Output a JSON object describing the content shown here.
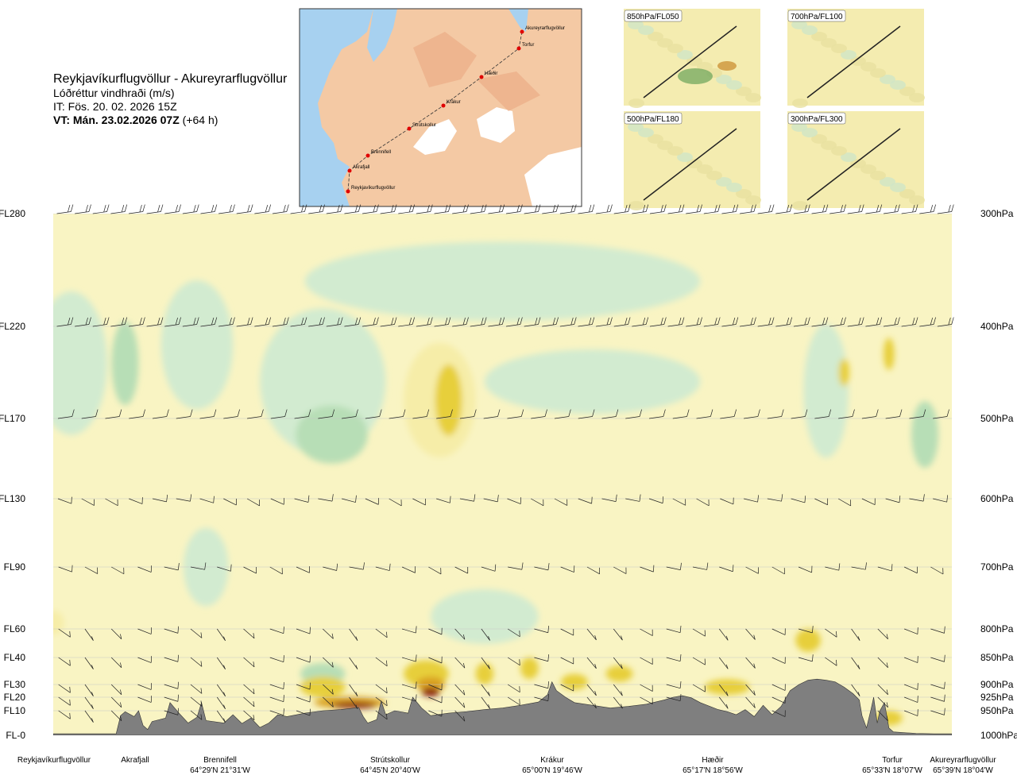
{
  "header": {
    "route": "Reykjavíkurflugvöllur - Akureyrarflugvöllur",
    "variable": "Lóðréttur vindhraði (m/s)",
    "issue_time": "IT: Fös. 20. 02. 2026 15Z",
    "valid_time": "VT: Mán. 23.02.2026 07Z",
    "lead_time": "(+64 h)"
  },
  "route_map": {
    "waypoints": [
      "Akureyrarflugvöllur",
      "Torfur",
      "Hæðir",
      "Krákur",
      "Strútskollur",
      "Brennifell",
      "Akrafjall",
      "Reykjavíkurflugvöllur"
    ]
  },
  "insets": [
    {
      "label": "850hPa/FL050"
    },
    {
      "label": "700hPa/FL100"
    },
    {
      "label": "500hPa/FL180"
    },
    {
      "label": "300hPa/FL300"
    }
  ],
  "colors": {
    "fill_down_strong": "#9bcf9b",
    "fill_down": "#b7deb6",
    "fill_down_weak": "#d2ebd0",
    "fill_neutral": "#fdfde4",
    "fill_up_weak": "#f6eda8",
    "fill_up": "#e7cf3a",
    "fill_up_strong": "#d9a122",
    "fill_up_max": "#8b2310",
    "terrain": "#7f7f7f"
  },
  "chart_data": {
    "type": "heatmap",
    "title": "Reykjavíkurflugvöllur - Akureyrarflugvöllur",
    "variable": "Lóðréttur vindhraði (m/s)",
    "y_levels": [
      {
        "fl": "FL280",
        "hpa": "300hPa",
        "p": 300
      },
      {
        "fl": "FL220",
        "hpa": "400hPa",
        "p": 400
      },
      {
        "fl": "FL170",
        "hpa": "500hPa",
        "p": 500
      },
      {
        "fl": "FL130",
        "hpa": "600hPa",
        "p": 600
      },
      {
        "fl": "FL90",
        "hpa": "700hPa",
        "p": 700
      },
      {
        "fl": "FL60",
        "hpa": "800hPa",
        "p": 800
      },
      {
        "fl": "FL40",
        "hpa": "850hPa",
        "p": 850
      },
      {
        "fl": "FL30",
        "hpa": "900hPa",
        "p": 900
      },
      {
        "fl": "FL20",
        "hpa": "925hPa",
        "p": 925
      },
      {
        "fl": "FL10",
        "hpa": "950hPa",
        "p": 950
      },
      {
        "fl": "FL-0",
        "hpa": "1000hPa",
        "p": 1000
      }
    ],
    "ylim": [
      1000,
      300
    ],
    "xlim": [
      0,
      100
    ],
    "waypoints": [
      {
        "name": "Reykjavíkurflugvöllur",
        "coord": "",
        "x": 0
      },
      {
        "name": "Akrafjall",
        "coord": "",
        "x": 9
      },
      {
        "name": "Brennifell",
        "coord": "64°29'N 21°31'W",
        "x": 18
      },
      {
        "name": "Strútskollur",
        "coord": "64°45'N 20°40'W",
        "x": 37.5
      },
      {
        "name": "Krákur",
        "coord": "65°00'N 19°46'W",
        "x": 56.5
      },
      {
        "name": "Hæðir",
        "coord": "65°17'N 18°56'W",
        "x": 76
      },
      {
        "name": "Torfur",
        "coord": "65°33'N 18°07'W",
        "x": 94
      },
      {
        "name": "Akureyrarflugvöllur",
        "coord": "65°39'N 18°04'W",
        "x": 100
      }
    ],
    "terrain_profile_hpa": [
      [
        0,
        997
      ],
      [
        7,
        997
      ],
      [
        7.5,
        960
      ],
      [
        8,
        952
      ],
      [
        9,
        962
      ],
      [
        9.5,
        950
      ],
      [
        10,
        980
      ],
      [
        10.5,
        988
      ],
      [
        11,
        972
      ],
      [
        12.5,
        965
      ],
      [
        13,
        935
      ],
      [
        14,
        955
      ],
      [
        15,
        975
      ],
      [
        16,
        963
      ],
      [
        16.5,
        935
      ],
      [
        17,
        970
      ],
      [
        19,
        975
      ],
      [
        20,
        958
      ],
      [
        21,
        976
      ],
      [
        22,
        965
      ],
      [
        23,
        984
      ],
      [
        24,
        975
      ],
      [
        25,
        958
      ],
      [
        26,
        962
      ],
      [
        28,
        955
      ],
      [
        30,
        950
      ],
      [
        32,
        948
      ],
      [
        33,
        946
      ],
      [
        34,
        944
      ],
      [
        34.5,
        962
      ],
      [
        35,
        975
      ],
      [
        36,
        968
      ],
      [
        36.5,
        932
      ],
      [
        37,
        958
      ],
      [
        38,
        950
      ],
      [
        39.5,
        955
      ],
      [
        40,
        925
      ],
      [
        41,
        945
      ],
      [
        42,
        960
      ],
      [
        44,
        955
      ],
      [
        46,
        952
      ],
      [
        48,
        948
      ],
      [
        50,
        945
      ],
      [
        52,
        940
      ],
      [
        54,
        934
      ],
      [
        55,
        920
      ],
      [
        55.5,
        895
      ],
      [
        56,
        912
      ],
      [
        57,
        925
      ],
      [
        58,
        935
      ],
      [
        60,
        940
      ],
      [
        62,
        945
      ],
      [
        64,
        942
      ],
      [
        66,
        938
      ],
      [
        68,
        930
      ],
      [
        69,
        925
      ],
      [
        70,
        922
      ],
      [
        71,
        926
      ],
      [
        72,
        935
      ],
      [
        74,
        948
      ],
      [
        75,
        952
      ],
      [
        76,
        958
      ],
      [
        77,
        948
      ],
      [
        78,
        962
      ],
      [
        79,
        940
      ],
      [
        80,
        958
      ],
      [
        81,
        942
      ],
      [
        82,
        912
      ],
      [
        83,
        900
      ],
      [
        84,
        892
      ],
      [
        85,
        890
      ],
      [
        86,
        892
      ],
      [
        87,
        895
      ],
      [
        88,
        905
      ],
      [
        89,
        918
      ],
      [
        89.7,
        930
      ],
      [
        90,
        960
      ],
      [
        90.5,
        985
      ],
      [
        91,
        948
      ],
      [
        91.3,
        925
      ],
      [
        91.7,
        975
      ],
      [
        92,
        950
      ],
      [
        92.5,
        935
      ],
      [
        93,
        985
      ],
      [
        93.5,
        993
      ],
      [
        95,
        995
      ],
      [
        96,
        996
      ],
      [
        98,
        997
      ],
      [
        100,
        997
      ]
    ],
    "vertical_velocity_regions": [
      {
        "class": "down_weak",
        "x": 2,
        "p": 440,
        "rx": 4,
        "rp": 150
      },
      {
        "class": "down",
        "x": 8,
        "p": 440,
        "rx": 1.5,
        "rp": 90
      },
      {
        "class": "down_weak",
        "x": 16,
        "p": 420,
        "rx": 4,
        "rp": 130
      },
      {
        "class": "down_weak",
        "x": 17,
        "p": 700,
        "rx": 2.5,
        "rp": 120
      },
      {
        "class": "down_weak",
        "x": 30,
        "p": 460,
        "rx": 7,
        "rp": 160
      },
      {
        "class": "down",
        "x": 31,
        "p": 520,
        "rx": 4,
        "rp": 70
      },
      {
        "class": "down_weak",
        "x": 50,
        "p": 360,
        "rx": 22,
        "rp": 70
      },
      {
        "class": "down_weak",
        "x": 60,
        "p": 460,
        "rx": 12,
        "rp": 70
      },
      {
        "class": "down_weak",
        "x": 86,
        "p": 470,
        "rx": 2.5,
        "rp": 150
      },
      {
        "class": "down",
        "x": 97,
        "p": 520,
        "rx": 1.5,
        "rp": 80
      },
      {
        "class": "down_weak",
        "x": 48,
        "p": 780,
        "rx": 6,
        "rp": 90
      },
      {
        "class": "down",
        "x": 30,
        "p": 880,
        "rx": 2.5,
        "rp": 40
      },
      {
        "class": "up_weak",
        "x": 43,
        "p": 480,
        "rx": 4,
        "rp": 130
      },
      {
        "class": "up",
        "x": 44,
        "p": 480,
        "rx": 1.5,
        "rp": 80
      },
      {
        "class": "up",
        "x": 88,
        "p": 450,
        "rx": 0.6,
        "rp": 30
      },
      {
        "class": "up",
        "x": 93,
        "p": 430,
        "rx": 0.6,
        "rp": 35
      },
      {
        "class": "up_weak",
        "x": 0,
        "p": 790,
        "rx": 1.2,
        "rp": 40
      },
      {
        "class": "up",
        "x": 30,
        "p": 905,
        "rx": 2.5,
        "rp": 40
      },
      {
        "class": "up_strong",
        "x": 33,
        "p": 935,
        "rx": 4,
        "rp": 22
      },
      {
        "class": "up_max",
        "x": 33.5,
        "p": 940,
        "rx": 2.5,
        "rp": 12
      },
      {
        "class": "up",
        "x": 41.5,
        "p": 880,
        "rx": 2.5,
        "rp": 50
      },
      {
        "class": "up_strong",
        "x": 42,
        "p": 900,
        "rx": 1.6,
        "rp": 30
      },
      {
        "class": "up_max",
        "x": 42,
        "p": 915,
        "rx": 1,
        "rp": 18
      },
      {
        "class": "up",
        "x": 48,
        "p": 880,
        "rx": 1,
        "rp": 40
      },
      {
        "class": "up",
        "x": 53,
        "p": 870,
        "rx": 1,
        "rp": 40
      },
      {
        "class": "up",
        "x": 58,
        "p": 895,
        "rx": 1.5,
        "rp": 30
      },
      {
        "class": "up",
        "x": 63,
        "p": 880,
        "rx": 1.5,
        "rp": 30
      },
      {
        "class": "up",
        "x": 75,
        "p": 905,
        "rx": 2.5,
        "rp": 30
      },
      {
        "class": "up",
        "x": 84,
        "p": 820,
        "rx": 1.4,
        "rp": 40
      },
      {
        "class": "up",
        "x": 93,
        "p": 965,
        "rx": 1.5,
        "rp": 30
      }
    ]
  },
  "x_labels": [
    {
      "name": "Reykjavíkurflugvöllur",
      "coord": ""
    },
    {
      "name": "Akrafjall",
      "coord": ""
    },
    {
      "name": "Brennifell",
      "coord": "64°29'N 21°31'W"
    },
    {
      "name": "Strútskollur",
      "coord": "64°45'N 20°40'W"
    },
    {
      "name": "Krákur",
      "coord": "65°00'N 19°46'W"
    },
    {
      "name": "Hæðir",
      "coord": "65°17'N 18°56'W"
    },
    {
      "name": "Torfur",
      "coord": "65°33'N 18°07'W"
    },
    {
      "name": "Akureyrarflugvöllur",
      "coord": "65°39'N 18°04'W"
    }
  ]
}
